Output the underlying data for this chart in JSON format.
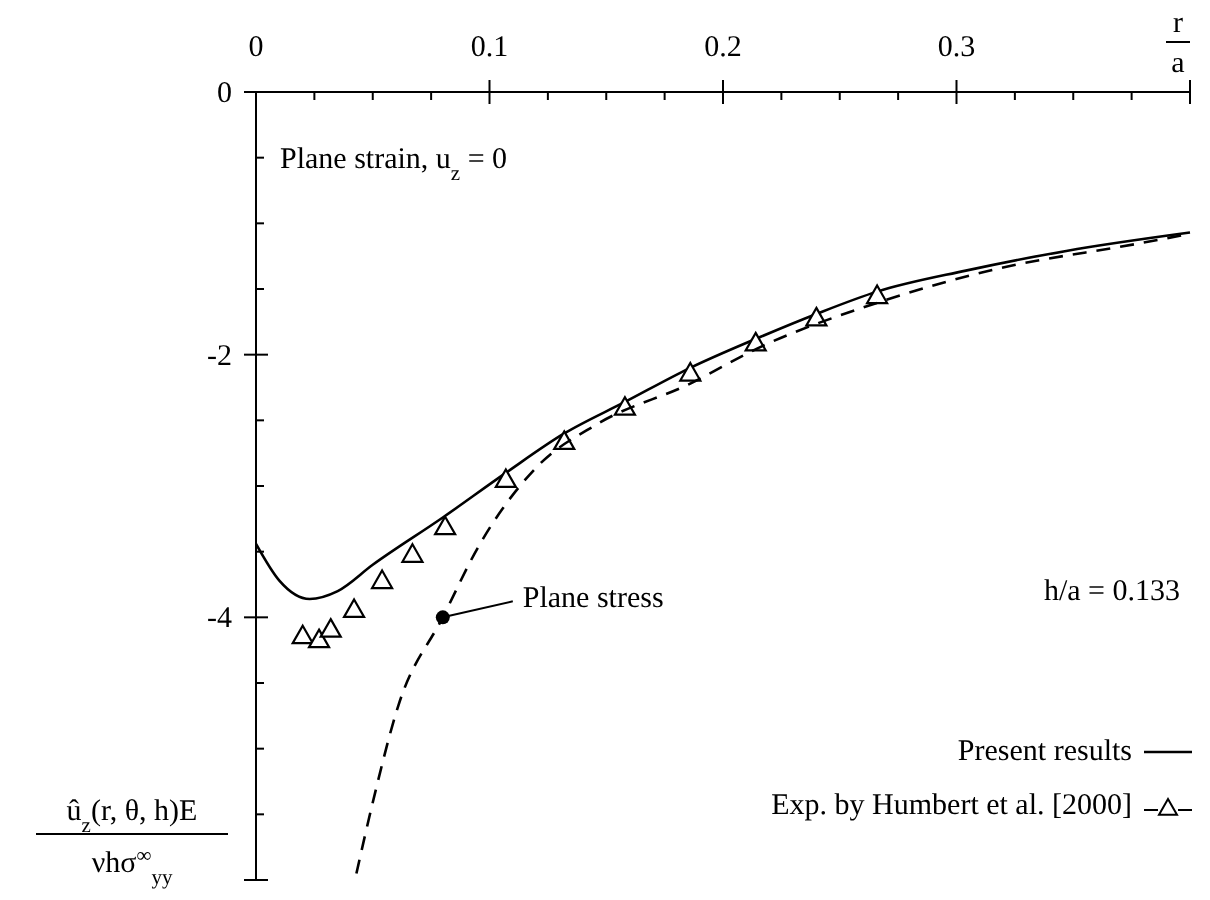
{
  "chart_data": {
    "type": "line",
    "xlabel": "r\na",
    "ylabel": "û$_{z}$(r, θ, h)E\nνhσ$^{∞}$$_{yy}$",
    "xlim": [
      0,
      0.4
    ],
    "ylim": [
      -6,
      0
    ],
    "xticks": [
      0,
      {
        "value": 0.025,
        "label": null
      },
      {
        "value": 0.05,
        "label": null
      },
      {
        "value": 0.075,
        "label": null
      },
      0.1,
      {
        "value": 0.125,
        "label": null
      },
      {
        "value": 0.15,
        "label": null
      },
      {
        "value": 0.175,
        "label": null
      },
      0.2,
      {
        "value": 0.225,
        "label": null
      },
      {
        "value": 0.25,
        "label": null
      },
      {
        "value": 0.275,
        "label": null
      },
      0.3,
      {
        "value": 0.325,
        "label": null
      },
      {
        "value": 0.35,
        "label": null
      },
      {
        "value": 0.375,
        "label": null
      },
      {
        "value": 0.4,
        "label": null
      }
    ],
    "yticks": [
      0,
      {
        "value": -0.5,
        "label": null
      },
      {
        "value": -1,
        "label": null
      },
      {
        "value": -1.5,
        "label": null
      },
      -2,
      {
        "value": -2.5,
        "label": null
      },
      {
        "value": -3,
        "label": null
      },
      {
        "value": -3.5,
        "label": null
      },
      -4,
      {
        "value": -4.5,
        "label": null
      },
      {
        "value": -5,
        "label": null
      },
      {
        "value": -5.5,
        "label": null
      },
      {
        "value": -6,
        "label": null
      }
    ],
    "legend": "bottom right",
    "series": [
      {
        "name": "Present results",
        "line_style": "solid",
        "color": "#000000",
        "x": [
          0,
          0.01,
          0.023,
          0.035,
          0.05,
          0.08,
          0.107,
          0.132,
          0.158,
          0.186,
          0.214,
          0.24,
          0.266,
          0.304,
          0.347,
          0.4
        ],
        "values": [
          -3.44,
          -3.72,
          -3.86,
          -3.8,
          -3.6,
          -3.24,
          -2.9,
          -2.6,
          -2.36,
          -2.1,
          -1.88,
          -1.69,
          -1.52,
          -1.36,
          -1.21,
          -1.07
        ]
      },
      {
        "name": "Exp. by Humbert et al. [2000]",
        "type": "scatter",
        "marker": "triangle",
        "color": "#000000",
        "x": [
          0.02,
          0.027,
          0.032,
          0.042,
          0.054,
          0.067,
          0.081,
          0.107,
          0.132,
          0.158,
          0.186,
          0.214,
          0.24,
          0.266
        ],
        "values": [
          -4.14,
          -4.17,
          -4.09,
          -3.94,
          -3.72,
          -3.52,
          -3.31,
          -2.95,
          -2.66,
          -2.4,
          -2.14,
          -1.91,
          -1.72,
          -1.55
        ]
      },
      {
        "line_style": "dashed",
        "color": "#000000",
        "x": [
          0.043,
          0.05,
          0.061,
          0.08,
          0.095,
          0.12,
          0.146,
          0.186,
          0.215,
          0.267,
          0.319,
          0.376,
          0.4
        ],
        "values": [
          -5.95,
          -5.41,
          -4.67,
          -4.0,
          -3.47,
          -2.86,
          -2.53,
          -2.22,
          -1.95,
          -1.6,
          -1.34,
          -1.16,
          -1.08
        ]
      }
    ],
    "annotations": [
      "Plane strain, u$_{z}$ = 0",
      "h/a = 0.133",
      {
        "text": "Plane stress",
        "x": 0.08,
        "y": -4.0
      }
    ]
  }
}
